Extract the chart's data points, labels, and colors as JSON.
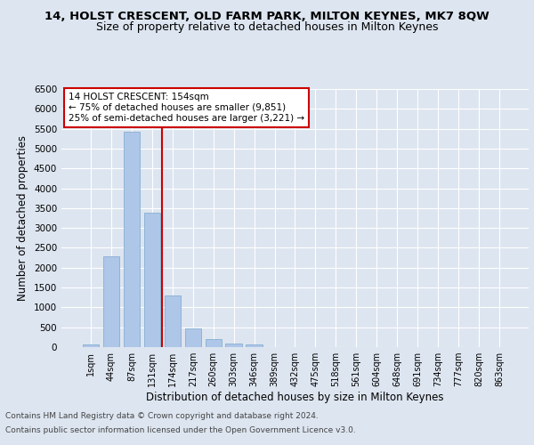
{
  "title": "14, HOLST CRESCENT, OLD FARM PARK, MILTON KEYNES, MK7 8QW",
  "subtitle": "Size of property relative to detached houses in Milton Keynes",
  "xlabel": "Distribution of detached houses by size in Milton Keynes",
  "ylabel": "Number of detached properties",
  "footer_line1": "Contains HM Land Registry data © Crown copyright and database right 2024.",
  "footer_line2": "Contains public sector information licensed under the Open Government Licence v3.0.",
  "bin_labels": [
    "1sqm",
    "44sqm",
    "87sqm",
    "131sqm",
    "174sqm",
    "217sqm",
    "260sqm",
    "303sqm",
    "346sqm",
    "389sqm",
    "432sqm",
    "475sqm",
    "518sqm",
    "561sqm",
    "604sqm",
    "648sqm",
    "691sqm",
    "734sqm",
    "777sqm",
    "820sqm",
    "863sqm"
  ],
  "bar_values": [
    75,
    2280,
    5420,
    3390,
    1290,
    480,
    195,
    100,
    65,
    0,
    0,
    0,
    0,
    0,
    0,
    0,
    0,
    0,
    0,
    0,
    0
  ],
  "bar_color": "#aec6e8",
  "bar_edgecolor": "#7aa8cc",
  "vline_x": 3.5,
  "vline_color": "#cc0000",
  "annotation_text": "14 HOLST CRESCENT: 154sqm\n← 75% of detached houses are smaller (9,851)\n25% of semi-detached houses are larger (3,221) →",
  "annotation_box_color": "#ffffff",
  "annotation_box_edgecolor": "#cc0000",
  "ylim": [
    0,
    6500
  ],
  "yticks": [
    0,
    500,
    1000,
    1500,
    2000,
    2500,
    3000,
    3500,
    4000,
    4500,
    5000,
    5500,
    6000,
    6500
  ],
  "bg_color": "#dde5f0",
  "fig_bg_color": "#dde5f0",
  "title_fontsize": 9.5,
  "subtitle_fontsize": 9,
  "label_fontsize": 8.5,
  "footer_fontsize": 6.5
}
